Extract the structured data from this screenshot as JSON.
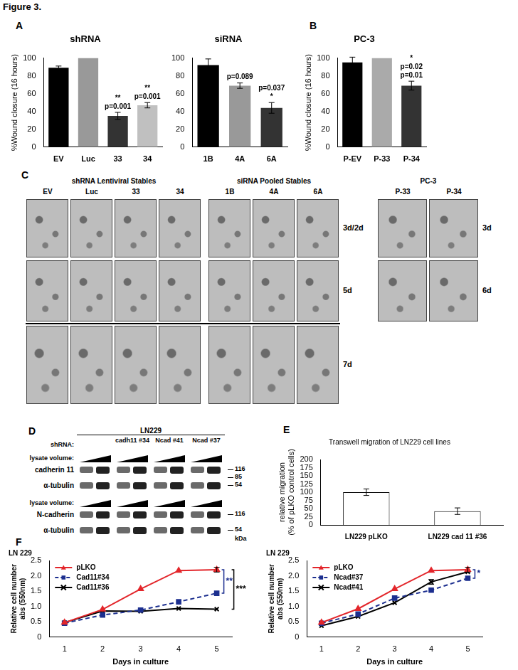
{
  "figure_label": "Figure 3.",
  "chart_data": [
    {
      "panel": "A",
      "type": "bar",
      "title": "shRNA",
      "y_label": "%Wound closure (16 hours)",
      "categories": [
        "EV",
        "Luc",
        "33",
        "34"
      ],
      "values": [
        89,
        100,
        35,
        47
      ],
      "errors": [
        2,
        null,
        4,
        3
      ],
      "colors": [
        "#000000",
        "#999999",
        "#333333",
        "#c0c0c0"
      ],
      "ylim": [
        0,
        100
      ],
      "yticks": [
        0,
        20,
        40,
        60,
        80,
        100
      ],
      "grid": false,
      "annotations": [
        {
          "category": "33",
          "texts": [
            "**",
            "p=0.001"
          ]
        },
        {
          "category": "34",
          "texts": [
            "**",
            "p=0.001"
          ]
        }
      ]
    },
    {
      "type": "bar",
      "title": "siRNA",
      "categories": [
        "1B",
        "4A",
        "6A"
      ],
      "values": [
        92,
        69,
        44
      ],
      "errors": [
        7,
        3,
        6
      ],
      "colors": [
        "#000000",
        "#999999",
        "#333333"
      ],
      "ylim": [
        0,
        100
      ],
      "yticks": [
        0,
        20,
        40,
        60,
        80,
        100
      ],
      "grid": false,
      "annotations": [
        {
          "category": "4A",
          "texts": [
            "p=0.089"
          ]
        },
        {
          "category": "6A",
          "texts": [
            "p=0.037",
            "*"
          ]
        }
      ]
    },
    {
      "panel": "B",
      "type": "bar",
      "title": "PC-3",
      "y_label": "%Wound closure (16 hours)",
      "categories": [
        "P-EV",
        "P-33",
        "P-34"
      ],
      "values": [
        95,
        100,
        69
      ],
      "errors": [
        6,
        null,
        5
      ],
      "colors": [
        "#000000",
        "#aaaaaa",
        "#333333"
      ],
      "ylim": [
        0,
        100
      ],
      "yticks": [
        0,
        20,
        40,
        60,
        80,
        100
      ],
      "grid": false,
      "annotations": [
        {
          "category": "P-34",
          "texts": [
            "*",
            "p=0.02",
            "p=0.01"
          ]
        }
      ]
    },
    {
      "panel": "E",
      "type": "bar",
      "title": "Transwell migration of LN229 cell lines",
      "y_label": [
        "relative migration",
        "(% of pLKO control cells)"
      ],
      "categories": [
        "LN229 pLKO",
        "LN229 cad 11 #36"
      ],
      "values": [
        100,
        42
      ],
      "errors": [
        10,
        10
      ],
      "color": "#ffffff",
      "ylim": [
        0,
        200
      ],
      "yticks": [
        0,
        25,
        50,
        75,
        100,
        125,
        150,
        175,
        200
      ],
      "grid": false
    },
    {
      "panel": "F",
      "type": "line",
      "title": "LN 229",
      "x_label": "Days in culture",
      "y_label": [
        "Relative cell number",
        "abs (550nm)"
      ],
      "x": [
        1,
        2,
        3,
        4,
        5
      ],
      "xlim": [
        0.6,
        5.4
      ],
      "xticks": [
        1,
        2,
        3,
        4,
        5
      ],
      "ylim": [
        0,
        2.5
      ],
      "yticks": [
        0,
        0.5,
        {
          "value": 1,
          "label": "1.0"
        },
        1.5,
        {
          "value": 2,
          "label": "2.0"
        },
        2.5
      ],
      "grid": false,
      "legend": "top-left",
      "series": [
        {
          "name": "pLKO",
          "color": "#e3262b",
          "marker": "triangle",
          "line_style": "solid",
          "values": [
            0.47,
            0.9,
            1.57,
            2.17,
            2.2
          ],
          "errors": [
            null,
            null,
            null,
            null,
            0.08
          ]
        },
        {
          "name": "Cad11#34",
          "color": "#1c2f8f",
          "marker": "square",
          "line_style": "dashed",
          "values": [
            0.45,
            0.72,
            0.88,
            1.15,
            1.43
          ]
        },
        {
          "name": "Cad11#36",
          "color": "#000000",
          "marker": "x",
          "line_style": "solid",
          "values": [
            0.47,
            0.85,
            0.84,
            0.93,
            0.91
          ]
        }
      ],
      "annotations": [
        {
          "series": "Cad11#34",
          "text": "**",
          "color": "#1c2f8f"
        },
        {
          "series": "Cad11#36",
          "text": "***",
          "color": "#000000"
        }
      ]
    },
    {
      "type": "line",
      "title": "LN 229",
      "x_label": "Days in culture",
      "y_label": [
        "Relative cell number",
        "abs (550nm)"
      ],
      "x": [
        1,
        2,
        3,
        4,
        5
      ],
      "xlim": [
        0.6,
        5.4
      ],
      "xticks": [
        1,
        2,
        3,
        4,
        5
      ],
      "ylim": [
        0,
        2.5
      ],
      "yticks": [
        0,
        0.5,
        {
          "value": 1,
          "label": "1.0"
        },
        1.5,
        {
          "value": 2,
          "label": "2.0"
        },
        2.5
      ],
      "grid": false,
      "legend": "top-left",
      "series": [
        {
          "name": "pLKO",
          "color": "#e3262b",
          "marker": "triangle",
          "line_style": "solid",
          "values": [
            0.47,
            0.92,
            1.57,
            2.17,
            2.2
          ],
          "errors": [
            null,
            null,
            null,
            null,
            0.08
          ]
        },
        {
          "name": "Ncad#37",
          "color": "#1c2f8f",
          "marker": "square",
          "line_style": "dashed",
          "values": [
            0.45,
            0.75,
            1.27,
            1.53,
            1.92
          ]
        },
        {
          "name": "Ncad#41",
          "color": "#000000",
          "marker": "x",
          "line_style": "solid",
          "values": [
            0.37,
            0.67,
            1.12,
            1.8,
            2.13
          ],
          "errors": [
            null,
            null,
            null,
            0.08,
            null
          ]
        }
      ],
      "annotations": [
        {
          "series": "Ncad#37",
          "text": "*",
          "color": "#1c2f8f"
        }
      ]
    }
  ],
  "panel_c": {
    "panel": "C",
    "blocks": [
      {
        "groups": [
          {
            "title": "shRNA Lentiviral Stables",
            "columns": [
              "EV",
              "Luc",
              "33",
              "34"
            ]
          },
          {
            "title": "siRNA Pooled Stables",
            "columns": [
              "1B",
              "4A",
              "6A"
            ]
          }
        ],
        "row_labels": [
          "3d/2d",
          "5d",
          "7d"
        ]
      },
      {
        "groups": [
          {
            "title": "PC-3",
            "columns": [
              "P-33",
              "P-34"
            ]
          }
        ],
        "row_labels": [
          "3d",
          "6d"
        ]
      }
    ]
  },
  "panel_d": {
    "panel": "D",
    "cell_line": "LN229",
    "lane_title": "shRNA:",
    "lanes": [
      null,
      "cadh11 #34",
      "Ncad #41",
      "Ncad #37"
    ],
    "ramp_label": "lysate volume:",
    "blots": [
      {
        "proteins": [
          "cadherin 11",
          "α-tubulin"
        ],
        "markers": [
          116,
          85,
          54
        ]
      },
      {
        "proteins": [
          "N-cadherin",
          "α-tubulin"
        ],
        "markers": [
          116,
          54
        ]
      }
    ],
    "marker_unit": "kDa"
  }
}
